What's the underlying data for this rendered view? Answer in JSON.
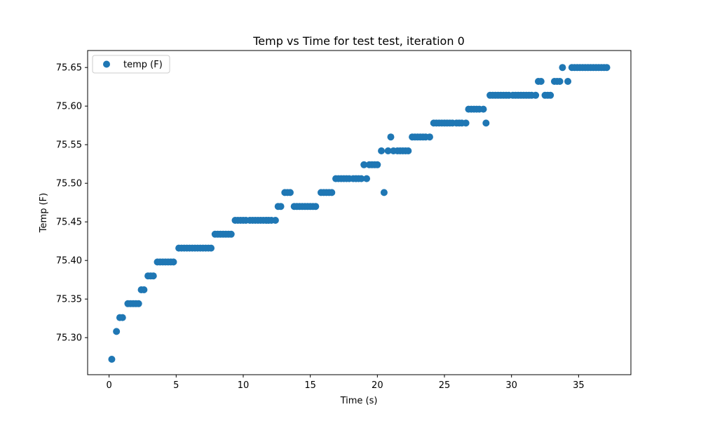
{
  "chart_data": {
    "type": "scatter",
    "title": "Temp vs Time for test test, iteration 0",
    "xlabel": "Time (s)",
    "ylabel": "Temp (F)",
    "xlim": [
      -1.6,
      38.9
    ],
    "ylim": [
      75.252,
      75.672
    ],
    "xticks": [
      0,
      5,
      10,
      15,
      20,
      25,
      30,
      35
    ],
    "yticks": [
      75.3,
      75.35,
      75.4,
      75.45,
      75.5,
      75.55,
      75.6,
      75.65
    ],
    "xtick_labels": [
      "0",
      "5",
      "10",
      "15",
      "20",
      "25",
      "30",
      "35"
    ],
    "ytick_labels": [
      "75.30",
      "75.35",
      "75.40",
      "75.45",
      "75.50",
      "75.55",
      "75.60",
      "75.65"
    ],
    "grid": false,
    "legend_position": "upper-left",
    "series": [
      {
        "name": "temp (F)",
        "color": "#1f77b4",
        "points": [
          [
            0.2,
            75.272
          ],
          [
            0.55,
            75.308
          ],
          [
            0.8,
            75.326
          ],
          [
            1.0,
            75.326
          ],
          [
            1.4,
            75.344
          ],
          [
            1.6,
            75.344
          ],
          [
            1.8,
            75.344
          ],
          [
            2.0,
            75.344
          ],
          [
            2.2,
            75.344
          ],
          [
            2.4,
            75.362
          ],
          [
            2.6,
            75.362
          ],
          [
            2.9,
            75.38
          ],
          [
            3.1,
            75.38
          ],
          [
            3.3,
            75.38
          ],
          [
            3.6,
            75.398
          ],
          [
            3.8,
            75.398
          ],
          [
            4.0,
            75.398
          ],
          [
            4.2,
            75.398
          ],
          [
            4.4,
            75.398
          ],
          [
            4.6,
            75.398
          ],
          [
            4.8,
            75.398
          ],
          [
            5.2,
            75.416
          ],
          [
            5.4,
            75.416
          ],
          [
            5.6,
            75.416
          ],
          [
            5.8,
            75.416
          ],
          [
            6.0,
            75.416
          ],
          [
            6.2,
            75.416
          ],
          [
            6.4,
            75.416
          ],
          [
            6.6,
            75.416
          ],
          [
            6.8,
            75.416
          ],
          [
            7.0,
            75.416
          ],
          [
            7.2,
            75.416
          ],
          [
            7.4,
            75.416
          ],
          [
            7.6,
            75.416
          ],
          [
            7.9,
            75.434
          ],
          [
            8.1,
            75.434
          ],
          [
            8.3,
            75.434
          ],
          [
            8.5,
            75.434
          ],
          [
            8.7,
            75.434
          ],
          [
            8.9,
            75.434
          ],
          [
            9.1,
            75.434
          ],
          [
            9.4,
            75.452
          ],
          [
            9.6,
            75.452
          ],
          [
            9.8,
            75.452
          ],
          [
            10.0,
            75.452
          ],
          [
            10.2,
            75.452
          ],
          [
            10.5,
            75.452
          ],
          [
            10.7,
            75.452
          ],
          [
            10.9,
            75.452
          ],
          [
            11.1,
            75.452
          ],
          [
            11.3,
            75.452
          ],
          [
            11.5,
            75.452
          ],
          [
            11.7,
            75.452
          ],
          [
            11.9,
            75.452
          ],
          [
            12.1,
            75.452
          ],
          [
            12.4,
            75.452
          ],
          [
            12.6,
            75.47
          ],
          [
            12.8,
            75.47
          ],
          [
            13.1,
            75.488
          ],
          [
            13.3,
            75.488
          ],
          [
            13.5,
            75.488
          ],
          [
            13.8,
            75.47
          ],
          [
            14.0,
            75.47
          ],
          [
            14.2,
            75.47
          ],
          [
            14.4,
            75.47
          ],
          [
            14.6,
            75.47
          ],
          [
            14.8,
            75.47
          ],
          [
            15.0,
            75.47
          ],
          [
            15.2,
            75.47
          ],
          [
            15.4,
            75.47
          ],
          [
            15.8,
            75.488
          ],
          [
            16.0,
            75.488
          ],
          [
            16.2,
            75.488
          ],
          [
            16.4,
            75.488
          ],
          [
            16.6,
            75.488
          ],
          [
            16.9,
            75.506
          ],
          [
            17.1,
            75.506
          ],
          [
            17.3,
            75.506
          ],
          [
            17.5,
            75.506
          ],
          [
            17.7,
            75.506
          ],
          [
            17.9,
            75.506
          ],
          [
            18.2,
            75.506
          ],
          [
            18.4,
            75.506
          ],
          [
            18.6,
            75.506
          ],
          [
            18.8,
            75.506
          ],
          [
            19.0,
            75.524
          ],
          [
            19.2,
            75.506
          ],
          [
            19.4,
            75.524
          ],
          [
            19.6,
            75.524
          ],
          [
            19.8,
            75.524
          ],
          [
            20.0,
            75.524
          ],
          [
            20.3,
            75.542
          ],
          [
            20.5,
            75.488
          ],
          [
            20.8,
            75.542
          ],
          [
            21.0,
            75.56
          ],
          [
            21.2,
            75.542
          ],
          [
            21.5,
            75.542
          ],
          [
            21.7,
            75.542
          ],
          [
            21.9,
            75.542
          ],
          [
            22.1,
            75.542
          ],
          [
            22.3,
            75.542
          ],
          [
            22.6,
            75.56
          ],
          [
            22.8,
            75.56
          ],
          [
            23.0,
            75.56
          ],
          [
            23.2,
            75.56
          ],
          [
            23.4,
            75.56
          ],
          [
            23.6,
            75.56
          ],
          [
            23.9,
            75.56
          ],
          [
            24.2,
            75.578
          ],
          [
            24.4,
            75.578
          ],
          [
            24.6,
            75.578
          ],
          [
            24.8,
            75.578
          ],
          [
            25.0,
            75.578
          ],
          [
            25.2,
            75.578
          ],
          [
            25.4,
            75.578
          ],
          [
            25.6,
            75.578
          ],
          [
            25.9,
            75.578
          ],
          [
            26.1,
            75.578
          ],
          [
            26.3,
            75.578
          ],
          [
            26.6,
            75.578
          ],
          [
            26.8,
            75.596
          ],
          [
            27.0,
            75.596
          ],
          [
            27.2,
            75.596
          ],
          [
            27.4,
            75.596
          ],
          [
            27.6,
            75.596
          ],
          [
            27.9,
            75.596
          ],
          [
            28.1,
            75.578
          ],
          [
            28.4,
            75.614
          ],
          [
            28.6,
            75.614
          ],
          [
            28.8,
            75.614
          ],
          [
            29.0,
            75.614
          ],
          [
            29.2,
            75.614
          ],
          [
            29.4,
            75.614
          ],
          [
            29.6,
            75.614
          ],
          [
            29.8,
            75.614
          ],
          [
            30.1,
            75.614
          ],
          [
            30.3,
            75.614
          ],
          [
            30.5,
            75.614
          ],
          [
            30.7,
            75.614
          ],
          [
            30.9,
            75.614
          ],
          [
            31.1,
            75.614
          ],
          [
            31.3,
            75.614
          ],
          [
            31.5,
            75.614
          ],
          [
            31.8,
            75.614
          ],
          [
            32.0,
            75.632
          ],
          [
            32.2,
            75.632
          ],
          [
            32.5,
            75.614
          ],
          [
            32.7,
            75.614
          ],
          [
            32.9,
            75.614
          ],
          [
            33.2,
            75.632
          ],
          [
            33.4,
            75.632
          ],
          [
            33.6,
            75.632
          ],
          [
            33.8,
            75.65
          ],
          [
            34.2,
            75.632
          ],
          [
            34.5,
            75.65
          ],
          [
            34.7,
            75.65
          ],
          [
            34.9,
            75.65
          ],
          [
            35.1,
            75.65
          ],
          [
            35.3,
            75.65
          ],
          [
            35.5,
            75.65
          ],
          [
            35.7,
            75.65
          ],
          [
            35.9,
            75.65
          ],
          [
            36.1,
            75.65
          ],
          [
            36.3,
            75.65
          ],
          [
            36.5,
            75.65
          ],
          [
            36.7,
            75.65
          ],
          [
            36.9,
            75.65
          ],
          [
            37.1,
            75.65
          ]
        ]
      }
    ]
  }
}
